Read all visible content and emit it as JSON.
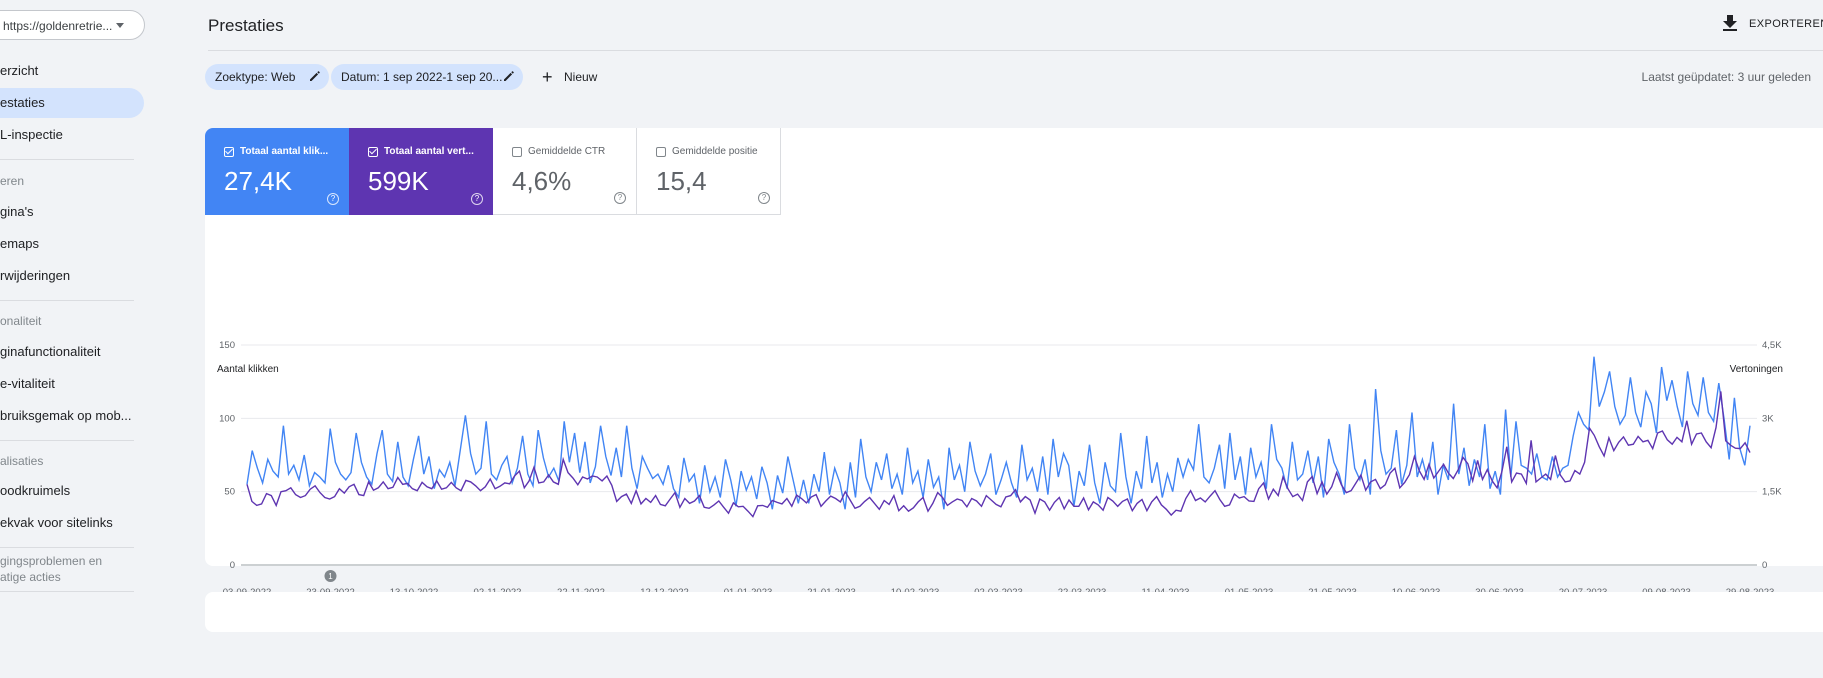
{
  "sidebar": {
    "property": "https://goldenretrie...",
    "items": [
      {
        "label": "Overzicht",
        "display": "erzicht"
      },
      {
        "label": "Prestaties",
        "display": "estaties",
        "active": true
      },
      {
        "label": "URL-inspectie",
        "display": "L-inspectie"
      }
    ],
    "sections": [
      {
        "title": "eren",
        "items": [
          "gina's",
          "emaps",
          "rwijderingen"
        ]
      },
      {
        "title": "onaliteit",
        "items": [
          "ginafunctionaliteit",
          "e-vitaliteit",
          "bruiksgemak op mob..."
        ]
      },
      {
        "title": "alisaties",
        "items": [
          "oodkruimels",
          "ekvak voor sitelinks"
        ]
      },
      {
        "title": "gingsproblemen en\natige acties",
        "items": []
      }
    ]
  },
  "header": {
    "title": "Prestaties",
    "export_label": "EXPORTEREN"
  },
  "filters": {
    "search_type": "Zoektype: Web",
    "date": "Datum: 1 sep 2022-1 sep 20...",
    "new_label": "Nieuw",
    "last_updated": "Laatst geüpdatet: 3 uur geleden"
  },
  "metrics": [
    {
      "label": "Totaal aantal klik...",
      "value": "27,4K",
      "checked": true,
      "color": "#4285f4"
    },
    {
      "label": "Totaal aantal vert...",
      "value": "599K",
      "checked": true,
      "color": "#5e35b1"
    },
    {
      "label": "Gemiddelde CTR",
      "value": "4,6%",
      "checked": false
    },
    {
      "label": "Gemiddelde positie",
      "value": "15,4",
      "checked": false
    }
  ],
  "chart_data": {
    "type": "line",
    "left_axis_label": "Aantal klikken",
    "right_axis_label": "Vertoningen",
    "left_ticks": [
      "150",
      "100",
      "50",
      "0"
    ],
    "right_ticks": [
      "4,5K",
      "3K",
      "1,5K",
      "0"
    ],
    "ylim_left": [
      0,
      150
    ],
    "ylim_right": [
      0,
      4500
    ],
    "x_labels": [
      "03-09-2022",
      "23-09-2022",
      "13-10-2022",
      "02-11-2022",
      "22-11-2022",
      "12-12-2022",
      "01-01-2023",
      "21-01-2023",
      "10-02-2023",
      "02-03-2023",
      "22-03-2023",
      "11-04-2023",
      "01-05-2023",
      "21-05-2023",
      "10-06-2023",
      "30-06-2023",
      "20-07-2023",
      "09-08-2023",
      "29-08-2023"
    ],
    "annotation": {
      "label": "1",
      "date": "23-09-2022"
    },
    "series": [
      {
        "name": "Totaal aantal klikken",
        "color": "#4285f4",
        "values": [
          55,
          78,
          66,
          56,
          72,
          64,
          60,
          95,
          62,
          68,
          58,
          75,
          54,
          63,
          60,
          56,
          93,
          70,
          62,
          58,
          63,
          90,
          70,
          60,
          55,
          76,
          92,
          62,
          57,
          84,
          60,
          54,
          72,
          88,
          62,
          74,
          52,
          65,
          60,
          70,
          54,
          78,
          102,
          76,
          62,
          66,
          98,
          62,
          58,
          68,
          74,
          56,
          66,
          88,
          62,
          54,
          92,
          73,
          60,
          66,
          57,
          98,
          70,
          90,
          63,
          84,
          56,
          67,
          95,
          74,
          61,
          80,
          60,
          95,
          66,
          52,
          74,
          66,
          59,
          62,
          55,
          68,
          52,
          46,
          73,
          57,
          62,
          42,
          68,
          50,
          60,
          46,
          72,
          58,
          40,
          64,
          51,
          60,
          45,
          67,
          56,
          38,
          61,
          49,
          74,
          58,
          42,
          58,
          42,
          62,
          50,
          77,
          48,
          66,
          56,
          38,
          70,
          46,
          86,
          60,
          50,
          70,
          58,
          76,
          52,
          62,
          48,
          80,
          56,
          64,
          46,
          72,
          53,
          60,
          38,
          80,
          58,
          68,
          50,
          84,
          64,
          54,
          62,
          76,
          48,
          58,
          70,
          56,
          46,
          82,
          58,
          66,
          50,
          74,
          48,
          86,
          60,
          76,
          68,
          40,
          64,
          54,
          82,
          56,
          42,
          70,
          54,
          50,
          90,
          60,
          42,
          64,
          52,
          88,
          56,
          70,
          46,
          62,
          50,
          73,
          60,
          72,
          65,
          96,
          60,
          56,
          66,
          82,
          52,
          90,
          58,
          74,
          48,
          80,
          60,
          70,
          52,
          96,
          72,
          66,
          52,
          84,
          58,
          62,
          78,
          56,
          74,
          46,
          86,
          70,
          62,
          48,
          96,
          66,
          58,
          72,
          48,
          120,
          78,
          62,
          66,
          92,
          55,
          68,
          104,
          60,
          72,
          58,
          84,
          48,
          68,
          58,
          110,
          62,
          80,
          54,
          72,
          60,
          96,
          52,
          64,
          48,
          106,
          60,
          98,
          68,
          66,
          62,
          76,
          60,
          58,
          74,
          60,
          66,
          68,
          88,
          104,
          96,
          92,
          142,
          108,
          118,
          132,
          108,
          96,
          102,
          128,
          104,
          94,
          118,
          110,
          90,
          135,
          112,
          126,
          108,
          94,
          132,
          110,
          102,
          128,
          104,
          98,
          124,
          100,
          72,
          114,
          80,
          68,
          95
        ]
      },
      {
        "name": "Totaal aantal vertoningen",
        "color": "#5e35b1",
        "values": [
          1650,
          1300,
          1220,
          1250,
          1460,
          1420,
          1220,
          1500,
          1520,
          1580,
          1440,
          1380,
          1420,
          1550,
          1620,
          1480,
          1380,
          1350,
          1400,
          1560,
          1470,
          1600,
          1650,
          1440,
          1420,
          1700,
          1530,
          1580,
          1700,
          1560,
          1590,
          1790,
          1650,
          1670,
          1560,
          1520,
          1690,
          1600,
          1560,
          1720,
          1550,
          1580,
          1690,
          1580,
          1520,
          1730,
          1700,
          1620,
          1520,
          1600,
          1760,
          1560,
          1610,
          1680,
          1660,
          1820,
          1920,
          1580,
          1720,
          2000,
          1680,
          1700,
          1840,
          1700,
          1650,
          2160,
          1890,
          1780,
          1640,
          1800,
          1760,
          1820,
          1800,
          1720,
          1820,
          1630,
          1300,
          1400,
          1450,
          1260,
          1520,
          1250,
          1360,
          1280,
          1420,
          1240,
          1210,
          1350,
          1480,
          1180,
          1360,
          1260,
          1310,
          1420,
          1180,
          1160,
          1230,
          1310,
          1180,
          1060,
          1270,
          1190,
          1200,
          1100,
          990,
          1210,
          1220,
          1180,
          1320,
          1280,
          1250,
          1360,
          1200,
          1430,
          1360,
          1270,
          1390,
          1440,
          1200,
          1310,
          1410,
          1360,
          1290,
          1500,
          1330,
          1160,
          1200,
          1300,
          1380,
          1260,
          1140,
          1320,
          1240,
          1420,
          1110,
          1210,
          1100,
          1170,
          1290,
          1380,
          1100,
          1260,
          1480,
          1380,
          1220,
          1290,
          1350,
          1320,
          1190,
          1360,
          1310,
          1200,
          1420,
          1330,
          1240,
          1190,
          1390,
          1420,
          1540,
          1290,
          1400,
          1330,
          1060,
          1350,
          1290,
          1120,
          1280,
          1380,
          1150,
          1330,
          1200,
          1200,
          1370,
          1130,
          1290,
          1230,
          1120,
          1380,
          1310,
          1200,
          1300,
          1350,
          1110,
          1260,
          1340,
          1110,
          1290,
          1400,
          1230,
          1140,
          1020,
          1120,
          1100,
          1360,
          1520,
          1320,
          1370,
          1290,
          1410,
          1520,
          1340,
          1200,
          1230,
          1450,
          1370,
          1400,
          1310,
          1300,
          1560,
          1680,
          1350,
          1550,
          1420,
          1800,
          1560,
          1400,
          1450,
          1320,
          1700,
          1810,
          1460,
          1700,
          1450,
          1600,
          1890,
          1640,
          1480,
          1520,
          1680,
          1840,
          1530,
          1700,
          1750,
          1560,
          1640,
          1880,
          1980,
          1580,
          1690,
          1850,
          2220,
          1930,
          1750,
          2060,
          1780,
          1920,
          2060,
          1880,
          1770,
          1950,
          2200,
          2070,
          1720,
          2140,
          1750,
          1950,
          1720,
          1580,
          1910,
          2420,
          1700,
          1880,
          1860,
          1670,
          2550,
          1700,
          1780,
          1860,
          1750,
          2240,
          1840,
          1700,
          1720,
          1930,
          1860,
          2100,
          2800,
          2650,
          2420,
          2230,
          2600,
          2340,
          2510,
          2620,
          2450,
          2470,
          2630,
          2520,
          2550,
          2380,
          2700,
          2740,
          2560,
          2470,
          2610,
          2520,
          2950,
          2470,
          2680,
          2700,
          2520,
          2400,
          2810,
          3550,
          2540,
          2450,
          2390,
          2380,
          2500,
          2300
        ]
      }
    ]
  }
}
